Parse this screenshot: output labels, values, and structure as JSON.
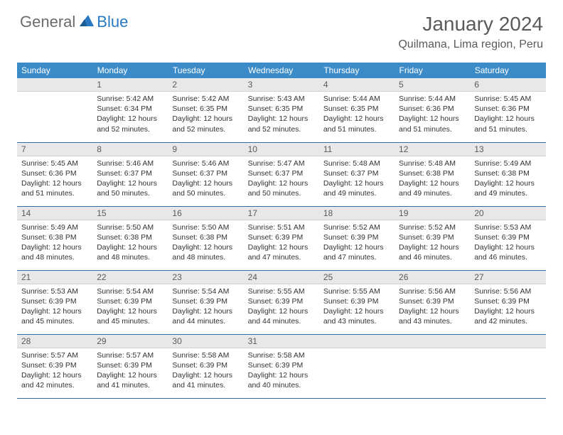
{
  "logo": {
    "general": "General",
    "blue": "Blue"
  },
  "title": "January 2024",
  "location": "Quilmana, Lima region, Peru",
  "header_color": "#3b8bc9",
  "daynum_bg": "#e8e8e8",
  "border_color": "#2f6fa8",
  "text_color": "#333333",
  "weekdays": [
    "Sunday",
    "Monday",
    "Tuesday",
    "Wednesday",
    "Thursday",
    "Friday",
    "Saturday"
  ],
  "weeks": [
    [
      null,
      {
        "n": "1",
        "sr": "5:42 AM",
        "ss": "6:34 PM",
        "dl": "12 hours and 52 minutes."
      },
      {
        "n": "2",
        "sr": "5:42 AM",
        "ss": "6:35 PM",
        "dl": "12 hours and 52 minutes."
      },
      {
        "n": "3",
        "sr": "5:43 AM",
        "ss": "6:35 PM",
        "dl": "12 hours and 52 minutes."
      },
      {
        "n": "4",
        "sr": "5:44 AM",
        "ss": "6:35 PM",
        "dl": "12 hours and 51 minutes."
      },
      {
        "n": "5",
        "sr": "5:44 AM",
        "ss": "6:36 PM",
        "dl": "12 hours and 51 minutes."
      },
      {
        "n": "6",
        "sr": "5:45 AM",
        "ss": "6:36 PM",
        "dl": "12 hours and 51 minutes."
      }
    ],
    [
      {
        "n": "7",
        "sr": "5:45 AM",
        "ss": "6:36 PM",
        "dl": "12 hours and 51 minutes."
      },
      {
        "n": "8",
        "sr": "5:46 AM",
        "ss": "6:37 PM",
        "dl": "12 hours and 50 minutes."
      },
      {
        "n": "9",
        "sr": "5:46 AM",
        "ss": "6:37 PM",
        "dl": "12 hours and 50 minutes."
      },
      {
        "n": "10",
        "sr": "5:47 AM",
        "ss": "6:37 PM",
        "dl": "12 hours and 50 minutes."
      },
      {
        "n": "11",
        "sr": "5:48 AM",
        "ss": "6:37 PM",
        "dl": "12 hours and 49 minutes."
      },
      {
        "n": "12",
        "sr": "5:48 AM",
        "ss": "6:38 PM",
        "dl": "12 hours and 49 minutes."
      },
      {
        "n": "13",
        "sr": "5:49 AM",
        "ss": "6:38 PM",
        "dl": "12 hours and 49 minutes."
      }
    ],
    [
      {
        "n": "14",
        "sr": "5:49 AM",
        "ss": "6:38 PM",
        "dl": "12 hours and 48 minutes."
      },
      {
        "n": "15",
        "sr": "5:50 AM",
        "ss": "6:38 PM",
        "dl": "12 hours and 48 minutes."
      },
      {
        "n": "16",
        "sr": "5:50 AM",
        "ss": "6:38 PM",
        "dl": "12 hours and 48 minutes."
      },
      {
        "n": "17",
        "sr": "5:51 AM",
        "ss": "6:39 PM",
        "dl": "12 hours and 47 minutes."
      },
      {
        "n": "18",
        "sr": "5:52 AM",
        "ss": "6:39 PM",
        "dl": "12 hours and 47 minutes."
      },
      {
        "n": "19",
        "sr": "5:52 AM",
        "ss": "6:39 PM",
        "dl": "12 hours and 46 minutes."
      },
      {
        "n": "20",
        "sr": "5:53 AM",
        "ss": "6:39 PM",
        "dl": "12 hours and 46 minutes."
      }
    ],
    [
      {
        "n": "21",
        "sr": "5:53 AM",
        "ss": "6:39 PM",
        "dl": "12 hours and 45 minutes."
      },
      {
        "n": "22",
        "sr": "5:54 AM",
        "ss": "6:39 PM",
        "dl": "12 hours and 45 minutes."
      },
      {
        "n": "23",
        "sr": "5:54 AM",
        "ss": "6:39 PM",
        "dl": "12 hours and 44 minutes."
      },
      {
        "n": "24",
        "sr": "5:55 AM",
        "ss": "6:39 PM",
        "dl": "12 hours and 44 minutes."
      },
      {
        "n": "25",
        "sr": "5:55 AM",
        "ss": "6:39 PM",
        "dl": "12 hours and 43 minutes."
      },
      {
        "n": "26",
        "sr": "5:56 AM",
        "ss": "6:39 PM",
        "dl": "12 hours and 43 minutes."
      },
      {
        "n": "27",
        "sr": "5:56 AM",
        "ss": "6:39 PM",
        "dl": "12 hours and 42 minutes."
      }
    ],
    [
      {
        "n": "28",
        "sr": "5:57 AM",
        "ss": "6:39 PM",
        "dl": "12 hours and 42 minutes."
      },
      {
        "n": "29",
        "sr": "5:57 AM",
        "ss": "6:39 PM",
        "dl": "12 hours and 41 minutes."
      },
      {
        "n": "30",
        "sr": "5:58 AM",
        "ss": "6:39 PM",
        "dl": "12 hours and 41 minutes."
      },
      {
        "n": "31",
        "sr": "5:58 AM",
        "ss": "6:39 PM",
        "dl": "12 hours and 40 minutes."
      },
      null,
      null,
      null
    ]
  ],
  "labels": {
    "sunrise": "Sunrise:",
    "sunset": "Sunset:",
    "daylight": "Daylight:"
  }
}
